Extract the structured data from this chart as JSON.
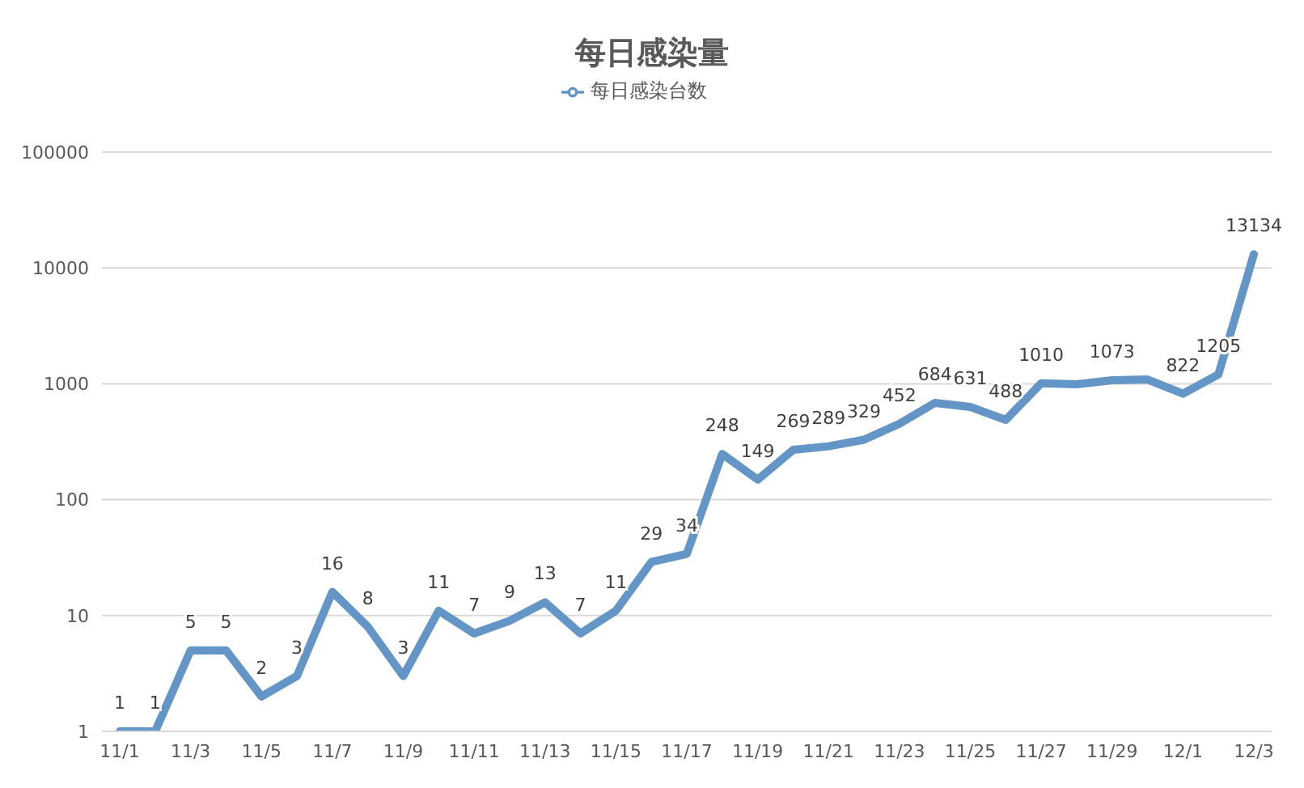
{
  "chart_data": {
    "type": "line",
    "title": "每日感染量",
    "log": "y",
    "grid": "y",
    "legend": "top",
    "marker": "none",
    "line_style": "solid",
    "categories": [
      "11/1",
      null,
      "11/3",
      null,
      "11/5",
      null,
      "11/7",
      null,
      "11/9",
      null,
      "11/11",
      null,
      "11/13",
      null,
      "11/15",
      null,
      "11/17",
      null,
      "11/19",
      null,
      "11/21",
      null,
      "11/23",
      null,
      "11/25",
      null,
      "11/27",
      null,
      "11/29",
      null,
      "12/1",
      null,
      "12/3"
    ],
    "ylim": [
      1,
      100000
    ],
    "yticks": [
      1,
      10,
      100,
      1000,
      10000,
      100000
    ],
    "series": [
      {
        "name": "每日感染台数",
        "color": "#6396c6",
        "values": [
          1,
          1,
          5,
          5,
          2,
          3,
          16,
          8,
          3,
          11,
          7,
          9,
          13,
          7,
          11,
          29,
          34,
          248,
          149,
          269,
          289,
          329,
          452,
          684,
          631,
          488,
          1010,
          990,
          1073,
          1090,
          822,
          1205,
          13134
        ],
        "value_labels": [
          "1",
          "1",
          "5",
          "5",
          "2",
          "3",
          "16",
          "8",
          "3",
          "11",
          "7",
          "9",
          "13",
          "7",
          "11",
          "29",
          "34",
          "248",
          "149",
          "269",
          "289",
          "329",
          "452",
          "684",
          "631",
          "488",
          "1010",
          null,
          "1073",
          null,
          "822",
          "1205",
          "13134"
        ]
      }
    ]
  }
}
